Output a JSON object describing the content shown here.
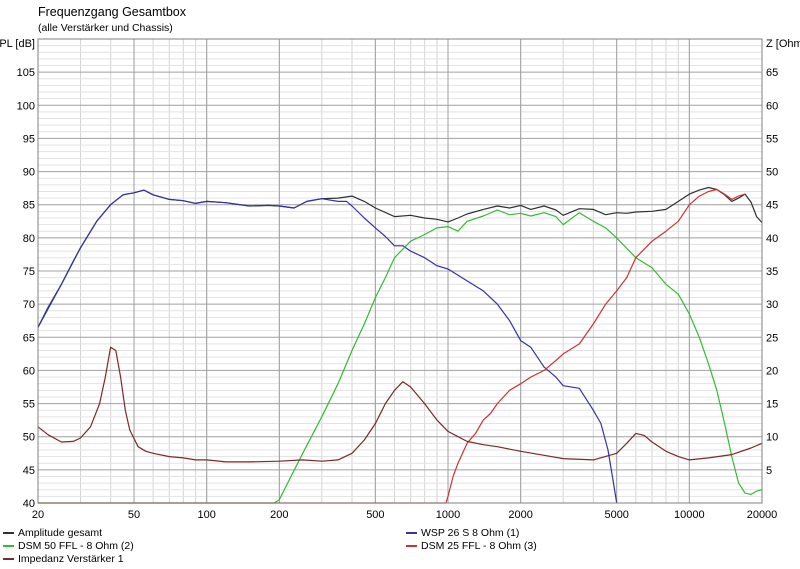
{
  "chart_data": {
    "type": "line",
    "title": "Frequenzgang Gesamtbox",
    "subtitle": "(alle Verstärker und Chassis)",
    "y_left_label": "SPL [dB]",
    "y_right_label": "Z [Ohm]",
    "x_scale": "log",
    "xlim": [
      20,
      20000
    ],
    "ylim_left": [
      40,
      110
    ],
    "ylim_right": [
      0,
      70
    ],
    "x_ticks": [
      20,
      50,
      100,
      200,
      500,
      1000,
      2000,
      5000,
      10000,
      20000
    ],
    "x_tick_labels": [
      "20",
      "50",
      "100",
      "200",
      "500",
      "1000",
      "2000",
      "5000",
      "10000",
      "20000"
    ],
    "y_left_ticks": [
      40,
      45,
      50,
      55,
      60,
      65,
      70,
      75,
      80,
      85,
      90,
      95,
      100,
      105
    ],
    "y_right_ticks": [
      5,
      10,
      15,
      20,
      25,
      30,
      35,
      40,
      45,
      50,
      55,
      60,
      65
    ],
    "grid": true,
    "legend_position": "bottom",
    "series": [
      {
        "name": "Amplitude gesamt",
        "axis": "left",
        "color": "#303030",
        "x": [
          20,
          22,
          25,
          28,
          30,
          35,
          40,
          45,
          50,
          55,
          60,
          70,
          80,
          90,
          100,
          120,
          150,
          180,
          200,
          230,
          260,
          300,
          350,
          400,
          450,
          500,
          600,
          700,
          800,
          900,
          1000,
          1100,
          1200,
          1400,
          1600,
          1800,
          2000,
          2200,
          2500,
          2800,
          3000,
          3500,
          4000,
          4500,
          5000,
          5500,
          6000,
          7000,
          8000,
          9000,
          10000,
          11000,
          12000,
          13000,
          14000,
          15000,
          16000,
          17000,
          18000,
          19000,
          20000
        ],
        "y": [
          66.5,
          69.5,
          73,
          76.5,
          78.5,
          82.5,
          85,
          86.5,
          86.8,
          87.2,
          86.5,
          85.8,
          85.6,
          85.2,
          85.5,
          85.3,
          84.8,
          84.9,
          84.8,
          84.5,
          85.5,
          85.9,
          86.0,
          86.3,
          85.5,
          84.5,
          83.2,
          83.4,
          83.0,
          82.8,
          82.4,
          83.0,
          83.6,
          84.3,
          84.8,
          84.5,
          84.9,
          84.3,
          84.8,
          84.2,
          83.4,
          84.4,
          84.3,
          83.5,
          83.8,
          83.7,
          83.9,
          84.0,
          84.3,
          85.5,
          86.6,
          87.2,
          87.6,
          87.3,
          86.5,
          85.5,
          86.0,
          86.6,
          85.4,
          83.2,
          82.3
        ]
      },
      {
        "name": "WSP 26 S 8 Ohm (1)",
        "axis": "left",
        "color": "#3333aa",
        "x": [
          20,
          25,
          30,
          35,
          40,
          45,
          50,
          55,
          60,
          70,
          80,
          90,
          100,
          120,
          150,
          180,
          200,
          230,
          260,
          300,
          350,
          380,
          400,
          450,
          500,
          550,
          600,
          650,
          700,
          800,
          900,
          1000,
          1200,
          1400,
          1600,
          1800,
          2000,
          2200,
          2500,
          2800,
          3000,
          3500,
          4000,
          4300,
          4600,
          4800,
          5000
        ],
        "y": [
          66.5,
          73,
          78.5,
          82.5,
          85,
          86.5,
          86.8,
          87.2,
          86.5,
          85.8,
          85.6,
          85.2,
          85.5,
          85.3,
          84.8,
          84.9,
          84.8,
          84.5,
          85.5,
          85.9,
          85.5,
          85.5,
          84.8,
          83.0,
          81.5,
          80.2,
          78.8,
          78.8,
          78.0,
          77.0,
          75.8,
          75.3,
          73.5,
          72.0,
          70.0,
          67.5,
          64.5,
          63.5,
          60.5,
          59.0,
          57.7,
          57.3,
          54.0,
          52.0,
          48.0,
          44.0,
          40.0
        ]
      },
      {
        "name": "DSM 50 FFL - 8 Ohm (2)",
        "axis": "left",
        "color": "#33bb33",
        "x": [
          20,
          100,
          190,
          200,
          220,
          250,
          300,
          350,
          400,
          450,
          500,
          550,
          600,
          700,
          800,
          900,
          1000,
          1100,
          1200,
          1400,
          1600,
          1800,
          2000,
          2200,
          2500,
          2800,
          3000,
          3500,
          4000,
          4500,
          5000,
          6000,
          7000,
          8000,
          9000,
          10000,
          11000,
          12000,
          13000,
          14000,
          15000,
          16000,
          17000,
          18000,
          19000,
          20000
        ],
        "y": [
          40.0,
          40.0,
          40.0,
          40.5,
          43.5,
          47.5,
          53.0,
          58.0,
          63.0,
          67.0,
          71.0,
          74.0,
          77.0,
          79.5,
          80.5,
          81.5,
          81.7,
          81.0,
          82.5,
          83.3,
          84.2,
          83.5,
          83.7,
          83.3,
          83.8,
          83.2,
          82.0,
          83.8,
          82.5,
          81.5,
          80.0,
          77.0,
          75.5,
          73.0,
          71.5,
          68.5,
          65.0,
          61.0,
          57.0,
          52.0,
          47.0,
          43.0,
          41.5,
          41.3,
          41.8,
          42.0
        ]
      },
      {
        "name": "DSM 25 FFL - 8 Ohm (3)",
        "axis": "left",
        "color": "#cc3333",
        "x": [
          20,
          500,
          980,
          1000,
          1050,
          1100,
          1200,
          1300,
          1400,
          1500,
          1600,
          1800,
          2000,
          2200,
          2500,
          2800,
          3000,
          3500,
          4000,
          4500,
          5000,
          5500,
          6000,
          7000,
          8000,
          9000,
          10000,
          11000,
          12000,
          13000,
          14000,
          15000,
          16000,
          17000
        ],
        "y": [
          40.0,
          40.0,
          40.0,
          41.0,
          44.0,
          46.0,
          49.0,
          50.5,
          52.5,
          53.5,
          55.0,
          57.0,
          58.0,
          59.0,
          60.0,
          61.5,
          62.5,
          64.0,
          67.0,
          70.0,
          72.0,
          74.0,
          77.0,
          79.5,
          81.0,
          82.5,
          85.0,
          86.3,
          87.0,
          87.3,
          86.6,
          85.8,
          86.3,
          86.6
        ]
      },
      {
        "name": "Impedanz Verstärker 1",
        "axis": "right",
        "color": "#7a2a2a",
        "x": [
          20,
          22,
          25,
          28,
          30,
          33,
          36,
          38,
          40,
          42,
          44,
          46,
          48,
          52,
          56,
          60,
          70,
          80,
          90,
          100,
          120,
          150,
          200,
          250,
          300,
          350,
          400,
          450,
          500,
          550,
          600,
          650,
          700,
          800,
          900,
          1000,
          1100,
          1200,
          1400,
          1600,
          2000,
          2500,
          3000,
          4000,
          5000,
          5500,
          6000,
          6500,
          7000,
          8000,
          9000,
          10000,
          12000,
          15000,
          18000,
          20000
        ],
        "y": [
          11.5,
          10.3,
          9.2,
          9.3,
          9.8,
          11.5,
          15.0,
          19.0,
          23.5,
          23.0,
          19.0,
          14.0,
          11.0,
          8.5,
          7.8,
          7.5,
          7.0,
          6.8,
          6.5,
          6.5,
          6.2,
          6.2,
          6.3,
          6.5,
          6.3,
          6.5,
          7.5,
          9.5,
          12.0,
          15.0,
          17.0,
          18.3,
          17.5,
          15.0,
          12.5,
          10.8,
          10.0,
          9.3,
          8.8,
          8.5,
          7.8,
          7.2,
          6.7,
          6.5,
          7.5,
          9.0,
          10.5,
          10.2,
          9.2,
          7.8,
          7.0,
          6.5,
          6.8,
          7.3,
          8.3,
          9.0
        ]
      }
    ]
  }
}
